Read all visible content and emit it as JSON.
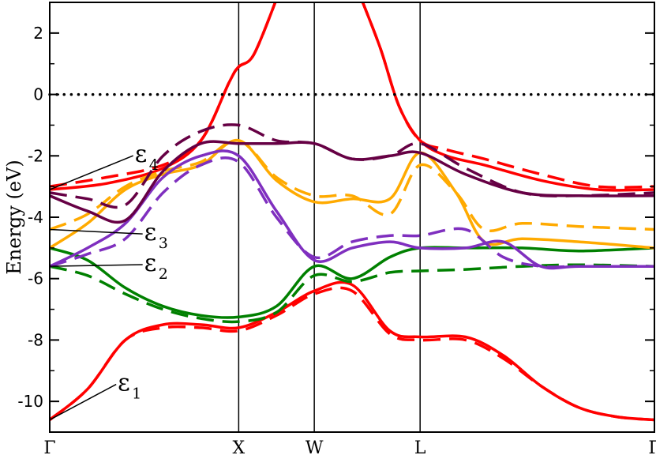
{
  "chart_data": {
    "type": "line",
    "ylabel": "Energy (eV)",
    "xlabel": "",
    "ylim": [
      -11,
      3
    ],
    "y_ticks": [
      2,
      0,
      -2,
      -4,
      -6,
      -8,
      -10
    ],
    "k_points": [
      {
        "label": "Γ",
        "x": 0
      },
      {
        "label": "X",
        "x": 1
      },
      {
        "label": "W",
        "x": 1.4
      },
      {
        "label": "L",
        "x": 1.96
      },
      {
        "label": "Γ",
        "x": 3.2
      }
    ],
    "xlim": [
      0,
      3.2
    ],
    "fermi_level": 0,
    "grid": false,
    "annotations": [
      {
        "symbol": "ε",
        "sub": "1",
        "text_x": 0.36,
        "text_y": -9.65,
        "target_x": 0.0,
        "target_y": -10.6
      },
      {
        "symbol": "ε",
        "sub": "2",
        "text_x": 0.5,
        "text_y": -5.75,
        "target_x": 0.0,
        "target_y": -5.6
      },
      {
        "symbol": "ε",
        "sub": "3",
        "text_x": 0.5,
        "text_y": -4.75,
        "target_x": 0.0,
        "target_y": -4.4
      },
      {
        "symbol": "ε",
        "sub": "4",
        "text_x": 0.45,
        "text_y": -2.2,
        "target_x": 0.0,
        "target_y": -3.1
      }
    ],
    "series": [
      {
        "color": "#ff0000",
        "style": "solid",
        "x": [
          0,
          0.2,
          0.4,
          0.6,
          0.8,
          1.0,
          1.2,
          1.4,
          1.6,
          1.8,
          1.96,
          2.2,
          2.4,
          2.6,
          2.8,
          3.0,
          3.2
        ],
        "y": [
          -10.6,
          -9.6,
          -8.0,
          -7.5,
          -7.5,
          -7.6,
          -7.1,
          -6.4,
          -6.2,
          -7.7,
          -7.9,
          -7.9,
          -8.5,
          -9.5,
          -10.2,
          -10.5,
          -10.6
        ]
      },
      {
        "color": "#ff0000",
        "style": "dashed",
        "x": [
          0,
          0.2,
          0.4,
          0.6,
          0.8,
          1.0,
          1.2,
          1.4,
          1.6,
          1.8,
          1.96,
          2.2,
          2.4,
          2.6,
          2.8,
          3.0,
          3.2
        ],
        "y": [
          -10.6,
          -9.6,
          -8.0,
          -7.6,
          -7.6,
          -7.7,
          -7.2,
          -6.5,
          -6.4,
          -7.8,
          -8.0,
          -8.0,
          -8.6,
          -9.5,
          -10.2,
          -10.5,
          -10.6
        ]
      },
      {
        "color": "#ff0000",
        "style": "solid",
        "x": [
          0,
          0.3,
          0.6,
          0.8,
          0.95,
          1.0,
          1.08,
          1.2
        ],
        "y": [
          -3.1,
          -2.9,
          -2.4,
          -1.5,
          0.4,
          0.9,
          1.3,
          3.1
        ]
      },
      {
        "color": "#ff0000",
        "style": "dashed",
        "x": [
          0,
          0.3,
          0.6,
          0.8,
          0.95,
          1.0,
          1.08,
          1.2
        ],
        "y": [
          -3.0,
          -2.7,
          -2.3,
          -1.5,
          0.4,
          0.9,
          1.3,
          3.1
        ]
      },
      {
        "color": "#ff0000",
        "style": "solid",
        "x": [
          1.65,
          1.75,
          1.85,
          1.96,
          2.1,
          2.3,
          2.6,
          2.9,
          3.2
        ],
        "y": [
          3.1,
          1.5,
          -0.4,
          -1.5,
          -2.0,
          -2.3,
          -2.8,
          -3.1,
          -3.1
        ]
      },
      {
        "color": "#ff0000",
        "style": "dashed",
        "x": [
          1.65,
          1.75,
          1.85,
          1.96,
          2.1,
          2.3,
          2.6,
          2.9,
          3.2
        ],
        "y": [
          3.1,
          1.5,
          -0.4,
          -1.5,
          -1.8,
          -2.1,
          -2.6,
          -3.0,
          -3.0
        ]
      },
      {
        "color": "#008000",
        "style": "solid",
        "x": [
          0,
          0.2,
          0.4,
          0.6,
          0.8,
          1.0,
          1.2,
          1.4,
          1.6,
          1.8,
          1.96,
          2.2,
          2.5,
          2.8,
          3.2
        ],
        "y": [
          -5.0,
          -5.4,
          -6.3,
          -6.9,
          -7.2,
          -7.25,
          -6.9,
          -5.6,
          -6.0,
          -5.3,
          -5.0,
          -5.0,
          -5.0,
          -5.1,
          -5.0
        ]
      },
      {
        "color": "#008000",
        "style": "dashed",
        "x": [
          0,
          0.2,
          0.4,
          0.6,
          0.8,
          1.0,
          1.2,
          1.4,
          1.6,
          1.8,
          1.96,
          2.2,
          2.5,
          2.8,
          3.2
        ],
        "y": [
          -5.6,
          -5.9,
          -6.5,
          -7.0,
          -7.3,
          -7.4,
          -7.1,
          -5.9,
          -6.1,
          -5.8,
          -5.75,
          -5.7,
          -5.6,
          -5.55,
          -5.6
        ]
      },
      {
        "color": "#ffaa00",
        "style": "solid",
        "x": [
          0,
          0.2,
          0.4,
          0.6,
          0.8,
          1.0,
          1.2,
          1.4,
          1.6,
          1.8,
          1.96,
          2.15,
          2.3,
          2.5,
          2.8,
          3.2
        ],
        "y": [
          -5.0,
          -4.2,
          -3.1,
          -2.6,
          -2.3,
          -1.5,
          -2.8,
          -3.5,
          -3.4,
          -3.4,
          -1.9,
          -3.2,
          -4.8,
          -4.7,
          -4.8,
          -5.0
        ]
      },
      {
        "color": "#ffaa00",
        "style": "dashed",
        "x": [
          0,
          0.2,
          0.4,
          0.6,
          0.8,
          1.0,
          1.2,
          1.4,
          1.6,
          1.8,
          1.96,
          2.15,
          2.3,
          2.5,
          2.8,
          3.2
        ],
        "y": [
          -4.4,
          -3.9,
          -3.0,
          -2.5,
          -2.2,
          -1.5,
          -2.7,
          -3.3,
          -3.3,
          -3.9,
          -2.3,
          -3.2,
          -4.4,
          -4.2,
          -4.3,
          -4.4
        ]
      },
      {
        "color": "#7f2fbf",
        "style": "solid",
        "x": [
          0,
          0.2,
          0.4,
          0.6,
          0.8,
          1.0,
          1.2,
          1.4,
          1.6,
          1.8,
          1.96,
          2.2,
          2.4,
          2.6,
          2.8,
          3.2
        ],
        "y": [
          -5.6,
          -5.0,
          -4.2,
          -2.7,
          -2.0,
          -2.0,
          -3.8,
          -5.4,
          -5.0,
          -4.8,
          -5.0,
          -5.0,
          -4.8,
          -5.6,
          -5.6,
          -5.6
        ]
      },
      {
        "color": "#7f2fbf",
        "style": "dashed",
        "x": [
          0,
          0.2,
          0.4,
          0.6,
          0.8,
          1.0,
          1.2,
          1.4,
          1.6,
          1.8,
          1.96,
          2.2,
          2.4,
          2.6,
          2.8,
          3.2
        ],
        "y": [
          -5.6,
          -5.2,
          -4.7,
          -3.2,
          -2.3,
          -2.2,
          -4.0,
          -5.3,
          -4.8,
          -4.6,
          -4.6,
          -4.4,
          -5.3,
          -5.6,
          -5.6,
          -5.6
        ]
      },
      {
        "color": "#660044",
        "style": "solid",
        "x": [
          0,
          0.2,
          0.4,
          0.6,
          0.8,
          1.0,
          1.2,
          1.4,
          1.6,
          1.8,
          1.96,
          2.2,
          2.5,
          2.8,
          3.2
        ],
        "y": [
          -3.3,
          -3.8,
          -4.1,
          -2.5,
          -1.6,
          -1.6,
          -1.6,
          -1.6,
          -2.1,
          -2.0,
          -1.9,
          -2.6,
          -3.2,
          -3.3,
          -3.3
        ]
      },
      {
        "color": "#660044",
        "style": "dashed",
        "x": [
          0,
          0.2,
          0.4,
          0.6,
          0.8,
          1.0,
          1.2,
          1.4,
          1.6,
          1.8,
          1.96,
          2.2,
          2.5,
          2.8,
          3.2
        ],
        "y": [
          -3.2,
          -3.4,
          -3.6,
          -2.0,
          -1.2,
          -1.0,
          -1.5,
          -1.6,
          -2.1,
          -2.0,
          -1.6,
          -2.4,
          -3.2,
          -3.3,
          -3.2
        ]
      }
    ]
  }
}
